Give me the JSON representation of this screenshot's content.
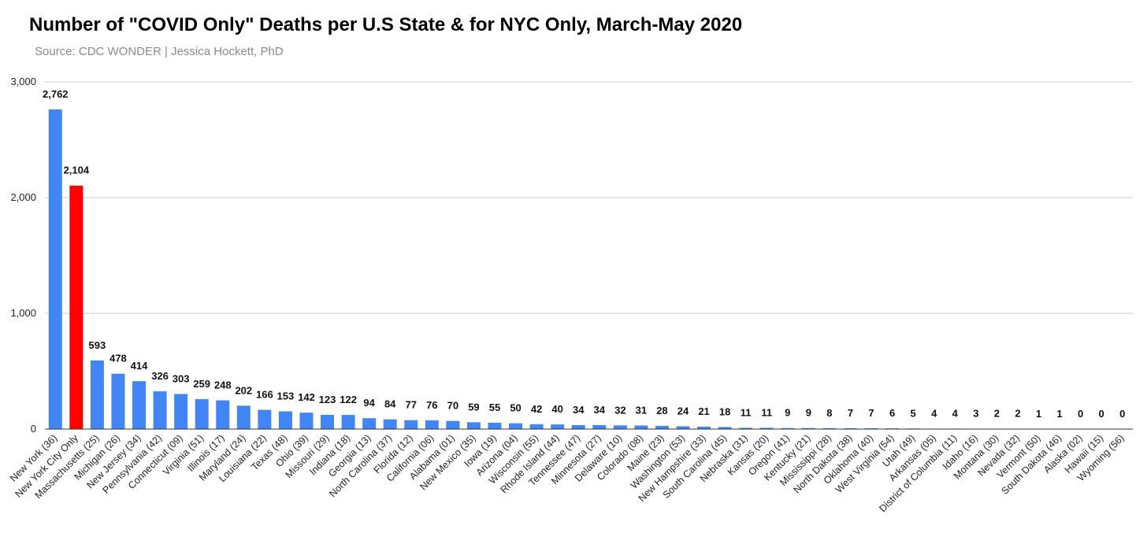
{
  "title": "Number of \"COVID Only\" Deaths per U.S State & for NYC Only, March-May 2020",
  "subtitle": "Source: CDC WONDER | Jessica Hockett, PhD",
  "chart_data": {
    "type": "bar",
    "title": "Number of \"COVID Only\" Deaths per U.S State & for NYC Only, March-May 2020",
    "subtitle": "Source: CDC WONDER | Jessica Hockett, PhD",
    "xlabel": "",
    "ylabel": "",
    "ylim": [
      0,
      3000
    ],
    "yticks": [
      0,
      1000,
      2000,
      3000
    ],
    "ytick_labels": [
      "0",
      "1,000",
      "2,000",
      "3,000"
    ],
    "grid": true,
    "legend": "none",
    "colors": {
      "default": "#4285f4",
      "highlight": "#ff0000"
    },
    "highlight_category": "New York City Only",
    "categories": [
      "New York (36)",
      "New York City Only",
      "Massachusetts (25)",
      "Michigan (26)",
      "New Jersey (34)",
      "Pennsylvania (42)",
      "Connecticut (09)",
      "Virginia (51)",
      "Illinois (17)",
      "Maryland (24)",
      "Louisiana (22)",
      "Texas (48)",
      "Ohio (39)",
      "Missouri (29)",
      "Indiana (18)",
      "Georgia (13)",
      "North Carolina (37)",
      "Florida (12)",
      "California (06)",
      "Alabama (01)",
      "New Mexico (35)",
      "Iowa (19)",
      "Arizona (04)",
      "Wisconsin (55)",
      "Rhode Island (44)",
      "Tennessee (47)",
      "Minnesota (27)",
      "Delaware (10)",
      "Colorado (08)",
      "Maine (23)",
      "Washington (53)",
      "New Hampshire (33)",
      "South Carolina (45)",
      "Nebraska (31)",
      "Kansas (20)",
      "Oregon (41)",
      "Kentucky (21)",
      "Mississippi (28)",
      "North Dakota (38)",
      "Oklahoma (40)",
      "West Virginia (54)",
      "Utah (49)",
      "Arkansas (05)",
      "District of Columbia (11)",
      "Idaho (16)",
      "Montana (30)",
      "Nevada (32)",
      "Vermont (50)",
      "South Dakota (46)",
      "Alaska (02)",
      "Hawaii (15)",
      "Wyoming (56)"
    ],
    "values": [
      2762,
      2104,
      593,
      478,
      414,
      326,
      303,
      259,
      248,
      202,
      166,
      153,
      142,
      123,
      122,
      94,
      84,
      77,
      76,
      70,
      59,
      55,
      50,
      42,
      40,
      34,
      34,
      32,
      31,
      28,
      24,
      21,
      18,
      11,
      11,
      9,
      9,
      8,
      7,
      7,
      6,
      5,
      4,
      4,
      3,
      2,
      2,
      1,
      1,
      0,
      0,
      0
    ],
    "value_labels": [
      "2,762",
      "2,104",
      "593",
      "478",
      "414",
      "326",
      "303",
      "259",
      "248",
      "202",
      "166",
      "153",
      "142",
      "123",
      "122",
      "94",
      "84",
      "77",
      "76",
      "70",
      "59",
      "55",
      "50",
      "42",
      "40",
      "34",
      "34",
      "32",
      "31",
      "28",
      "24",
      "21",
      "18",
      "11",
      "11",
      "9",
      "9",
      "8",
      "7",
      "7",
      "6",
      "5",
      "4",
      "4",
      "3",
      "2",
      "2",
      "1",
      "1",
      "0",
      "0",
      "0"
    ]
  }
}
